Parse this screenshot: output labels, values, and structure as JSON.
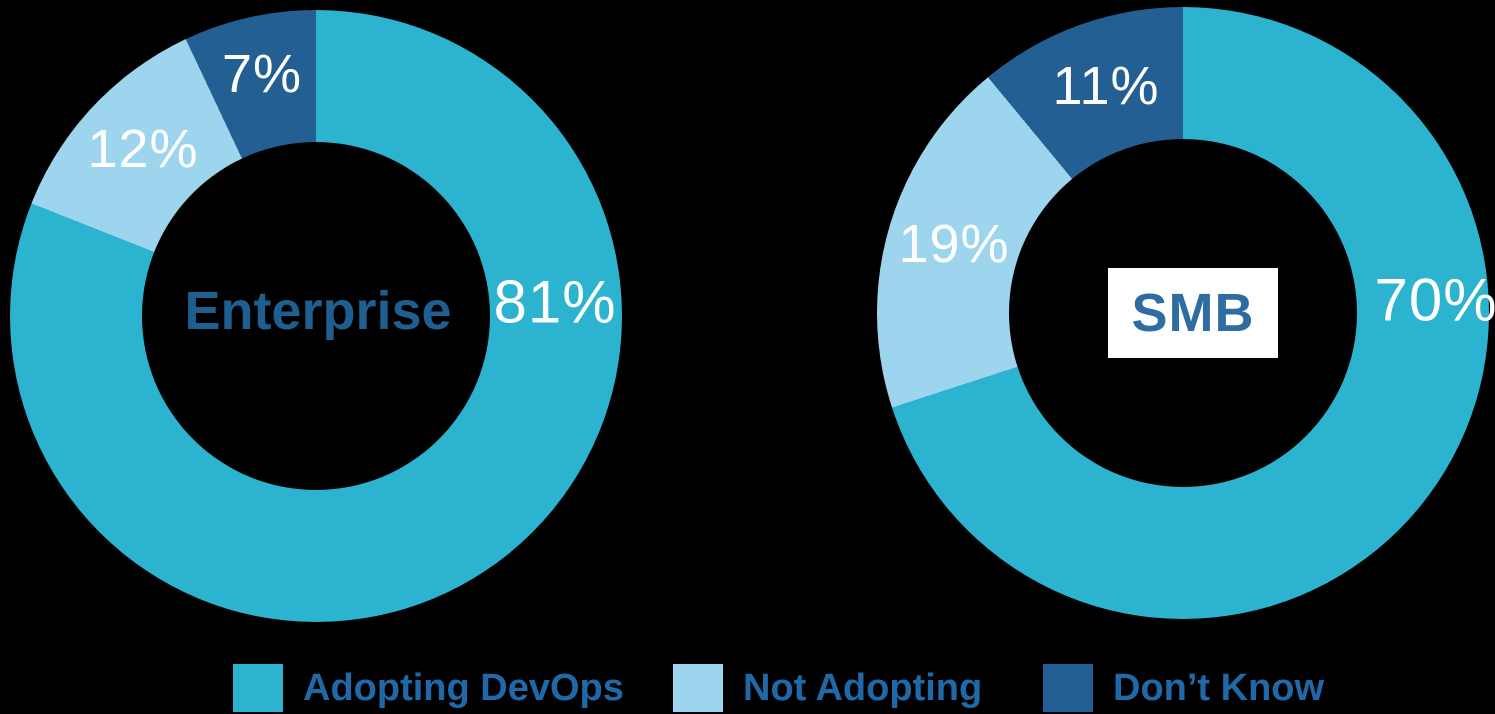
{
  "background": "#000000",
  "chart_data": {
    "type": "pie",
    "subtype": "donut",
    "title": "",
    "legend_position": "bottom",
    "palette": {
      "adopting_devops": "#2BB3CF",
      "not_adopting": "#9DD5EF",
      "dont_know": "#245F94",
      "center_label_enterprise": "#1E5F90",
      "center_label_smb": "#2F6CA2",
      "legend_text": "#2069A8",
      "value_text": "#FFFFFF",
      "background": "#000000",
      "smb_box_background": "#FFFFFF"
    },
    "charts": [
      {
        "id": "enterprise",
        "center_label": "Enterprise",
        "slices": [
          {
            "label": "Adopting DevOps",
            "value": 81,
            "value_label": "81%",
            "color": "#2BB3CF"
          },
          {
            "label": "Not Adopting",
            "value": 12,
            "value_label": "12%",
            "color": "#9DD5EF"
          },
          {
            "label": "Don’t Know",
            "value": 7,
            "value_label": "7%",
            "color": "#245F94"
          }
        ]
      },
      {
        "id": "smb",
        "center_label": "SMB",
        "slices": [
          {
            "label": "Adopting DevOps",
            "value": 70,
            "value_label": "70%",
            "color": "#2BB3CF"
          },
          {
            "label": "Not Adopting",
            "value": 19,
            "value_label": "19%",
            "color": "#9DD5EF"
          },
          {
            "label": "Don’t Know",
            "value": 11,
            "value_label": "11%",
            "color": "#245F94"
          }
        ]
      }
    ],
    "legend": [
      {
        "label": "Adopting DevOps",
        "color": "#2BB3CF"
      },
      {
        "label": "Not Adopting",
        "color": "#9DD5EF"
      },
      {
        "label": "Don’t Know",
        "color": "#245F94"
      }
    ]
  }
}
